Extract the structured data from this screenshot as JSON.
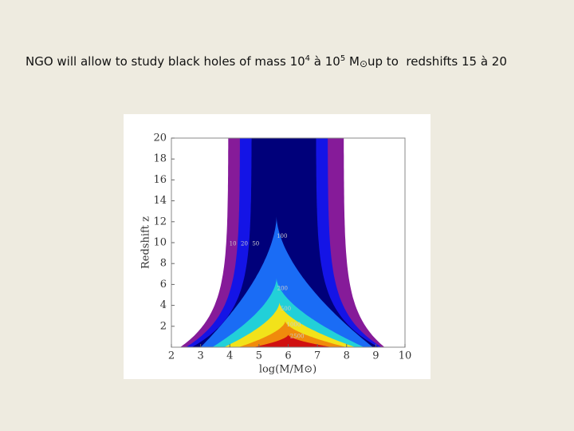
{
  "slide": {
    "title_parts": [
      "NGO will allow to study black holes of mass 10",
      "4",
      " à 10",
      "5",
      " M",
      "⊙",
      "up to  redshifts 15 à 20"
    ]
  },
  "chart_data": {
    "type": "contour",
    "xlabel": "log(M/M⊙)",
    "ylabel": "Redshift z",
    "xlim": [
      2,
      10
    ],
    "xticks": [
      2,
      3,
      4,
      5,
      6,
      7,
      8,
      9,
      10
    ],
    "ylim": [
      0,
      20
    ],
    "yticks": [
      2,
      4,
      6,
      8,
      10,
      12,
      14,
      16,
      18,
      20
    ],
    "levels": [
      10,
      20,
      50,
      100,
      200,
      500,
      1000,
      2500
    ],
    "colors": [
      "#861b99",
      "#1414e6",
      "#00007a",
      "#1a6cf5",
      "#22d0d8",
      "#f2e21a",
      "#f08a0c",
      "#d01010"
    ]
  }
}
